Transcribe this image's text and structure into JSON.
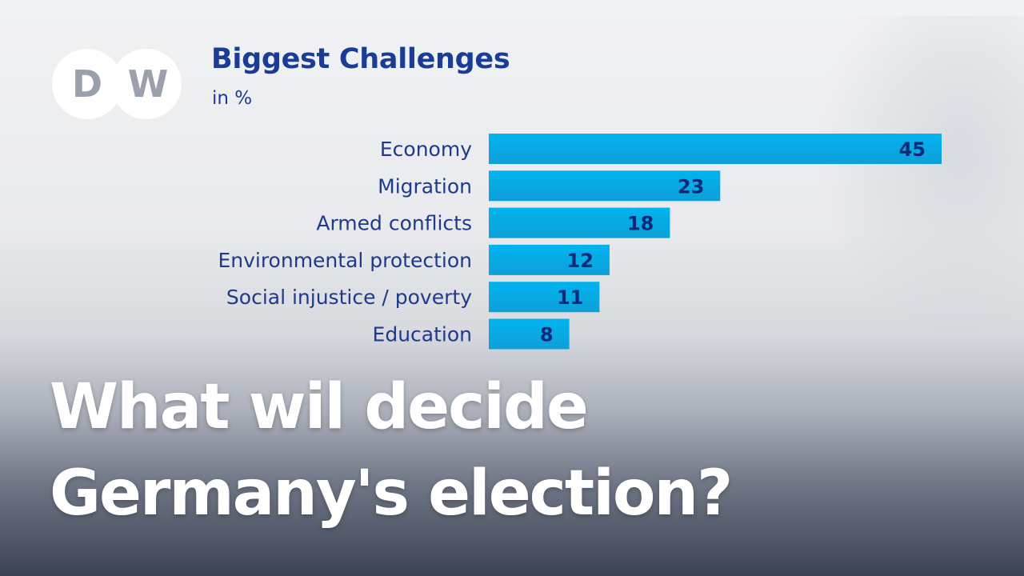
{
  "brand": {
    "logo_text": "DW",
    "color": "#ffffff"
  },
  "headline": {
    "line1": "What wil decide",
    "line2": "Germany's election?"
  },
  "colors": {
    "title": "#1a3c97",
    "bar_top": "#00b4f0",
    "bar_bottom": "#0f9fd8",
    "value_text": "#0d2a7a",
    "headline_text": "#ffffff"
  },
  "chart_data": {
    "type": "bar",
    "orientation": "horizontal",
    "title": "Biggest Challenges",
    "subtitle": "in %",
    "categories": [
      "Economy",
      "Migration",
      "Armed conflicts",
      "Environmental protection",
      "Social injustice / poverty",
      "Education"
    ],
    "values": [
      45,
      23,
      18,
      12,
      11,
      8
    ],
    "value_labels": [
      "45",
      "23",
      "18",
      "12",
      "11",
      "8"
    ],
    "xlim": [
      0,
      45
    ],
    "grid": false,
    "legend": "none"
  }
}
